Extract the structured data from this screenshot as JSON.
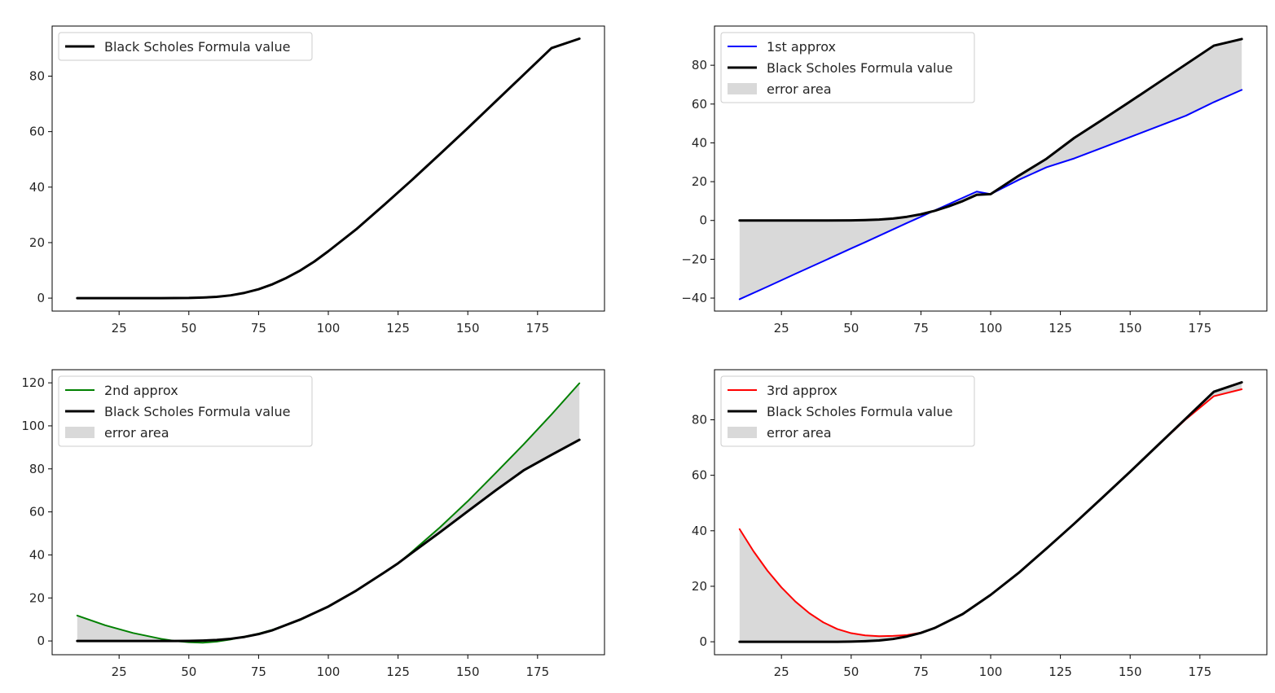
{
  "chart_data": [
    {
      "type": "line",
      "title": "",
      "xlabel": "",
      "ylabel": "",
      "legend_location": "upper-left",
      "xlim": [
        1,
        199
      ],
      "ylim": [
        -4.67,
        98.05
      ],
      "xticks": [
        25,
        50,
        75,
        100,
        125,
        150,
        175
      ],
      "yticks": [
        0,
        20,
        40,
        60,
        80
      ],
      "x": [
        10,
        20,
        30,
        40,
        50,
        55,
        60,
        65,
        70,
        75,
        80,
        85,
        90,
        95,
        100,
        110,
        120,
        130,
        140,
        150,
        160,
        170,
        180,
        190
      ],
      "series": [
        {
          "name": "Black Scholes Formula value",
          "role": "reference",
          "color": "#000000",
          "values": [
            0,
            0,
            0,
            0,
            0.05,
            0.2,
            0.45,
            1.0,
            1.9,
            3.2,
            5.0,
            7.3,
            10.0,
            13.2,
            16.9,
            24.8,
            33.6,
            42.6,
            51.9,
            61.3,
            70.9,
            80.5,
            90.1,
            93.5
          ]
        }
      ]
    },
    {
      "type": "line",
      "title": "",
      "xlabel": "",
      "ylabel": "",
      "legend_location": "upper-left",
      "xlim": [
        1,
        199
      ],
      "ylim": [
        -46.7,
        100.2
      ],
      "xticks": [
        25,
        50,
        75,
        100,
        125,
        150,
        175
      ],
      "yticks": [
        -40,
        -20,
        0,
        20,
        40,
        60,
        80
      ],
      "x": [
        10,
        20,
        30,
        40,
        50,
        55,
        60,
        65,
        70,
        75,
        80,
        85,
        90,
        95,
        100,
        110,
        120,
        130,
        140,
        150,
        160,
        170,
        180,
        190
      ],
      "series": [
        {
          "name": "1st approx",
          "role": "approx",
          "color": "#0000ff",
          "values": [
            -40.6,
            -34.1,
            -27.5,
            -21.0,
            -14.4,
            -11.2,
            -7.9,
            -4.6,
            -1.3,
            1.9,
            5.2,
            8.4,
            11.7,
            14.9,
            13.6,
            20.9,
            27.4,
            32.0,
            37.5,
            43.0,
            48.5,
            54.0,
            61.0,
            67.3
          ]
        },
        {
          "name": "Black Scholes Formula value",
          "role": "reference",
          "color": "#000000",
          "values": [
            0,
            0,
            0,
            0,
            0.05,
            0.2,
            0.45,
            1.0,
            1.9,
            3.2,
            5.0,
            7.3,
            10.0,
            13.2,
            13.6,
            23.0,
            31.8,
            42.6,
            51.9,
            61.3,
            70.9,
            80.5,
            90.1,
            93.5
          ]
        }
      ],
      "fill_label": "error area",
      "fill_color": "#d9d9d9"
    },
    {
      "type": "line",
      "title": "",
      "xlabel": "",
      "ylabel": "",
      "legend_location": "upper-left",
      "xlim": [
        1,
        199
      ],
      "ylim": [
        -6.4,
        126.1
      ],
      "xticks": [
        25,
        50,
        75,
        100,
        125,
        150,
        175
      ],
      "yticks": [
        0,
        20,
        40,
        60,
        80,
        100,
        120
      ],
      "x": [
        10,
        20,
        30,
        40,
        45,
        50,
        55,
        60,
        65,
        70,
        75,
        80,
        90,
        100,
        110,
        120,
        125,
        130,
        140,
        150,
        160,
        170,
        180,
        190
      ],
      "series": [
        {
          "name": "2nd approx",
          "role": "approx",
          "color": "#008000",
          "values": [
            11.8,
            7.3,
            3.7,
            1.0,
            0.0,
            -0.6,
            -0.8,
            -0.3,
            0.7,
            2.0,
            3.4,
            5.2,
            9.8,
            16.0,
            23.4,
            31.8,
            36.1,
            41.5,
            52.8,
            65.0,
            78.1,
            91.4,
            105.3,
            119.8
          ]
        },
        {
          "name": "Black Scholes Formula value",
          "role": "reference",
          "color": "#000000",
          "values": [
            0,
            0,
            0,
            0,
            0.0,
            0.05,
            0.2,
            0.45,
            1.0,
            1.9,
            3.2,
            5.0,
            10.0,
            16.0,
            23.4,
            31.8,
            36.1,
            41.0,
            50.5,
            60.3,
            70.0,
            79.3,
            86.5,
            93.5
          ]
        }
      ],
      "fill_label": "error area",
      "fill_color": "#d9d9d9"
    },
    {
      "type": "line",
      "title": "",
      "xlabel": "",
      "ylabel": "",
      "legend_location": "upper-left",
      "xlim": [
        1,
        199
      ],
      "ylim": [
        -4.67,
        98.05
      ],
      "xticks": [
        25,
        50,
        75,
        100,
        125,
        150,
        175
      ],
      "yticks": [
        0,
        20,
        40,
        60,
        80
      ],
      "x": [
        10,
        15,
        20,
        25,
        30,
        35,
        40,
        45,
        50,
        55,
        60,
        65,
        70,
        75,
        80,
        90,
        100,
        110,
        120,
        130,
        140,
        150,
        160,
        170,
        180,
        190
      ],
      "series": [
        {
          "name": "3rd approx",
          "role": "approx",
          "color": "#ff0000",
          "values": [
            40.6,
            32.6,
            25.6,
            19.6,
            14.5,
            10.3,
            7.0,
            4.6,
            3.1,
            2.3,
            2.0,
            2.1,
            2.4,
            3.3,
            5.0,
            10.0,
            16.9,
            24.8,
            33.6,
            42.6,
            51.9,
            61.3,
            70.8,
            80.2,
            88.5,
            91.0
          ]
        },
        {
          "name": "Black Scholes Formula value",
          "role": "reference",
          "color": "#000000",
          "values": [
            0,
            0,
            0,
            0,
            0,
            0,
            0,
            0,
            0.05,
            0.2,
            0.45,
            1.0,
            1.9,
            3.2,
            5.0,
            10.0,
            16.9,
            24.8,
            33.6,
            42.6,
            51.9,
            61.3,
            70.9,
            80.5,
            90.1,
            93.5
          ]
        }
      ],
      "fill_label": "error area",
      "fill_color": "#d9d9d9"
    }
  ]
}
